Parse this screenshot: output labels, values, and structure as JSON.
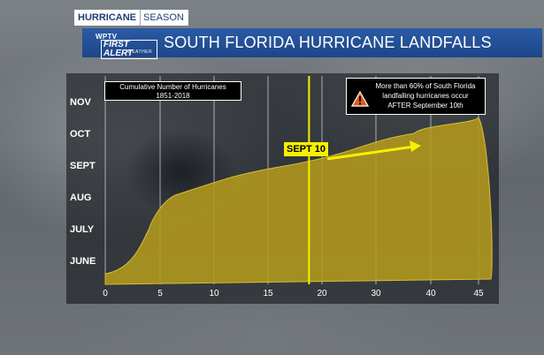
{
  "header": {
    "tag_primary": "HURRICANE",
    "tag_secondary": "SEASON",
    "logo_line1": "WPTV",
    "logo_line2": "FIRST ALERT",
    "logo_line3": "WEATHER",
    "title": "SOUTH FLORIDA HURRICANE LANDFALLS"
  },
  "colors": {
    "banner": "#1d4688",
    "area_fill": "#b39a1c",
    "marker_line": "#f5f000",
    "callout_bg": "#f5f000",
    "warning_icon": "#e05a1a"
  },
  "chart_data": {
    "type": "area",
    "title": "Cumulative Number of Hurricanes",
    "subtitle": "1851-2018",
    "orientation": "horizontal",
    "x_ticks": [
      0,
      5,
      10,
      15,
      20,
      30,
      40,
      45
    ],
    "y_ticks": [
      "JUNE",
      "JULY",
      "AUG",
      "SEPT",
      "OCT",
      "NOV"
    ],
    "grid": true,
    "series": [
      {
        "points": [
          {
            "month": "JUNE",
            "cumulative": 0
          },
          {
            "month": "JULY",
            "cumulative": 4
          },
          {
            "month": "AUG",
            "cumulative": 6
          },
          {
            "month": "SEPT",
            "cumulative": 17
          },
          {
            "month": "OCT",
            "cumulative": 37
          },
          {
            "month": "NOV",
            "cumulative": 45
          }
        ]
      }
    ],
    "marker": {
      "label": "SEPT 10",
      "x": 18.8
    },
    "annotation": {
      "lines": [
        "More than 60% of South Florida",
        "landfalling hurricanes occur",
        "AFTER September 10th"
      ],
      "icon": "warning-icon"
    }
  }
}
